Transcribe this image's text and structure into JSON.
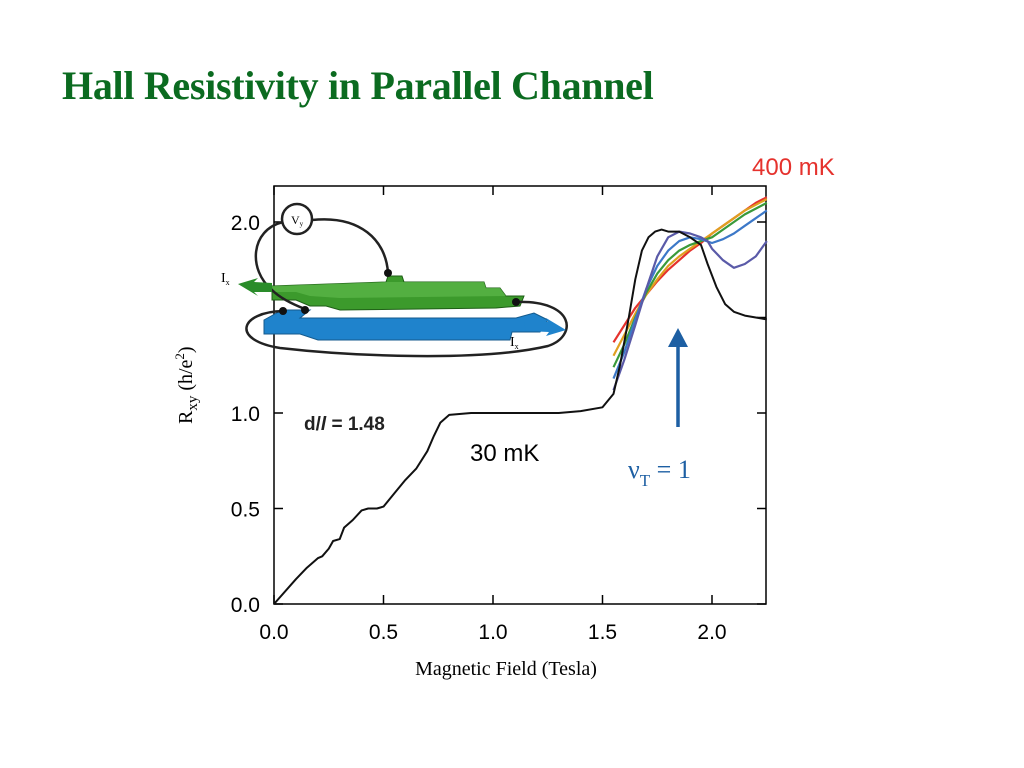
{
  "slide": {
    "title": "Hall Resistivity in Parallel Channel"
  },
  "chart_data": {
    "type": "line",
    "xlabel": "Magnetic Field (Tesla)",
    "ylabel": {
      "main": "R",
      "sub": "xy",
      "unit_open": " (h/e",
      "sup": "2",
      "unit_close": ")"
    },
    "xlim": [
      0.0,
      2.25
    ],
    "ylim": [
      0.0,
      2.15
    ],
    "x_ticks": [
      "0.0",
      "0.5",
      "1.0",
      "1.5",
      "2.0"
    ],
    "x_tick_values": [
      0.0,
      0.5,
      1.0,
      1.5,
      2.0
    ],
    "y_ticks": [
      "0.0",
      "0.5",
      "1.0",
      "2.0"
    ],
    "y_tick_values": [
      0.0,
      0.5,
      1.0,
      2.0
    ],
    "y_minor_tick_values": [
      1.5
    ],
    "grid": false,
    "annotations": {
      "hot": "400 mK",
      "cold": "30 mK",
      "ratio_prefix": "d/",
      "ratio_italic": "l",
      "ratio_suffix": " = 1.48",
      "filling_nu": "ν",
      "filling_sub": "T",
      "filling_rest": " = 1",
      "inset_vy": "V",
      "inset_vy_sub": "y",
      "inset_ix_left": "I",
      "inset_ix_left_sub": "x",
      "inset_ix_right": "I",
      "inset_ix_right_sub": "x"
    },
    "colors": {
      "cold": "#111111",
      "hot": "#e5322d",
      "title": "#0b6b20",
      "arrow": "#1d5fa3",
      "top_layer": "#3c9a2c",
      "bottom_layer": "#1f83cc"
    },
    "series": [
      {
        "name": "30 mK",
        "color": "#111111",
        "x": [
          0.0,
          0.1,
          0.15,
          0.2,
          0.22,
          0.25,
          0.27,
          0.3,
          0.32,
          0.36,
          0.4,
          0.43,
          0.47,
          0.5,
          0.55,
          0.6,
          0.65,
          0.7,
          0.73,
          0.76,
          0.8,
          0.9,
          1.0,
          1.1,
          1.2,
          1.3,
          1.4,
          1.5,
          1.55,
          1.58,
          1.62,
          1.65,
          1.68,
          1.71,
          1.74,
          1.77,
          1.8,
          1.85,
          1.9,
          1.95,
          1.98,
          2.02,
          2.06,
          2.1,
          2.15,
          2.2,
          2.25
        ],
        "y": [
          0.0,
          0.13,
          0.19,
          0.24,
          0.25,
          0.29,
          0.33,
          0.34,
          0.4,
          0.44,
          0.49,
          0.5,
          0.5,
          0.51,
          0.58,
          0.65,
          0.71,
          0.8,
          0.88,
          0.95,
          0.99,
          1.0,
          1.0,
          1.0,
          1.0,
          1.0,
          1.01,
          1.03,
          1.1,
          1.25,
          1.5,
          1.7,
          1.85,
          1.92,
          1.95,
          1.96,
          1.95,
          1.95,
          1.92,
          1.88,
          1.78,
          1.66,
          1.57,
          1.53,
          1.51,
          1.5,
          1.49
        ]
      },
      {
        "name": "",
        "color": "#5a5aa8",
        "x": [
          1.55,
          1.6,
          1.65,
          1.7,
          1.75,
          1.8,
          1.85,
          1.9,
          1.95,
          1.98,
          2.0,
          2.05,
          2.1,
          2.15,
          2.2,
          2.25
        ],
        "y": [
          1.12,
          1.28,
          1.46,
          1.65,
          1.82,
          1.92,
          1.95,
          1.94,
          1.92,
          1.9,
          1.86,
          1.8,
          1.76,
          1.78,
          1.82,
          1.9
        ]
      },
      {
        "name": "",
        "color": "#3c78c8",
        "x": [
          1.55,
          1.6,
          1.65,
          1.7,
          1.75,
          1.8,
          1.85,
          1.9,
          1.95,
          2.0,
          2.05,
          2.1,
          2.15,
          2.2,
          2.25
        ],
        "y": [
          1.18,
          1.32,
          1.49,
          1.65,
          1.77,
          1.85,
          1.9,
          1.92,
          1.91,
          1.89,
          1.91,
          1.94,
          1.98,
          2.02,
          2.06
        ]
      },
      {
        "name": "",
        "color": "#3a9a3a",
        "x": [
          1.55,
          1.6,
          1.65,
          1.7,
          1.75,
          1.8,
          1.85,
          1.9,
          1.95,
          2.0,
          2.05,
          2.1,
          2.15,
          2.2,
          2.25
        ],
        "y": [
          1.24,
          1.36,
          1.5,
          1.63,
          1.73,
          1.8,
          1.85,
          1.88,
          1.9,
          1.92,
          1.96,
          2.0,
          2.04,
          2.07,
          2.1
        ]
      },
      {
        "name": "",
        "color": "#e0a020",
        "x": [
          1.55,
          1.6,
          1.65,
          1.7,
          1.75,
          1.8,
          1.85,
          1.9,
          1.95,
          2.0,
          2.05,
          2.1,
          2.15,
          2.2,
          2.25
        ],
        "y": [
          1.3,
          1.41,
          1.52,
          1.62,
          1.7,
          1.77,
          1.82,
          1.86,
          1.9,
          1.94,
          1.98,
          2.02,
          2.06,
          2.09,
          2.12
        ]
      },
      {
        "name": "400 mK",
        "color": "#e5322d",
        "x": [
          1.55,
          1.6,
          1.65,
          1.7,
          1.75,
          1.8,
          1.85,
          1.9,
          1.95,
          2.0,
          2.05,
          2.1,
          2.15,
          2.2,
          2.25
        ],
        "y": [
          1.37,
          1.46,
          1.55,
          1.62,
          1.69,
          1.75,
          1.8,
          1.85,
          1.89,
          1.94,
          1.98,
          2.02,
          2.06,
          2.1,
          2.13
        ]
      }
    ]
  }
}
